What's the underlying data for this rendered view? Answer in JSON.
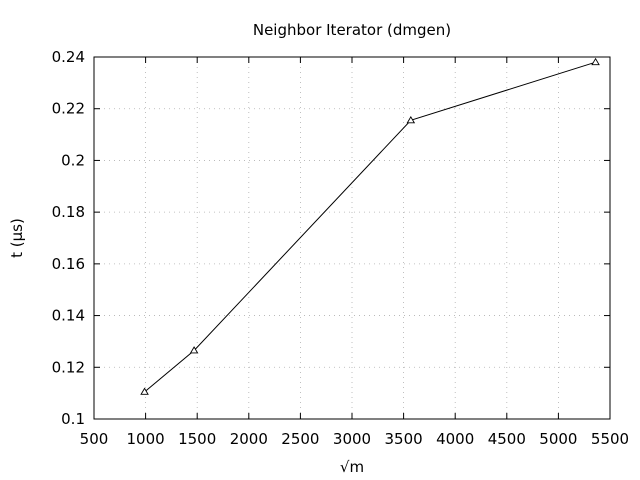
{
  "chart_data": {
    "type": "line",
    "title": "Neighbor Iterator (dmgen)",
    "xlabel": "√m",
    "ylabel": "t (µs)",
    "xlim": [
      500,
      5500
    ],
    "ylim": [
      0.1,
      0.24
    ],
    "xticks": [
      500,
      1000,
      1500,
      2000,
      2500,
      3000,
      3500,
      4000,
      4500,
      5000,
      5500
    ],
    "yticks": [
      0.1,
      0.12,
      0.14,
      0.16,
      0.18,
      0.2,
      0.22,
      0.24
    ],
    "xtick_labels": [
      "500",
      "1000",
      "1500",
      "2000",
      "2500",
      "3000",
      "3500",
      "4000",
      "4500",
      "5000",
      "5500"
    ],
    "ytick_labels": [
      "0.1",
      "0.12",
      "0.14",
      "0.16",
      "0.18",
      "0.2",
      "0.22",
      "0.24"
    ],
    "grid": true,
    "marker": "triangle",
    "series": [
      {
        "x": [
          990,
          1470,
          3570,
          5360
        ],
        "y": [
          0.1105,
          0.1265,
          0.2155,
          0.238
        ]
      }
    ]
  }
}
